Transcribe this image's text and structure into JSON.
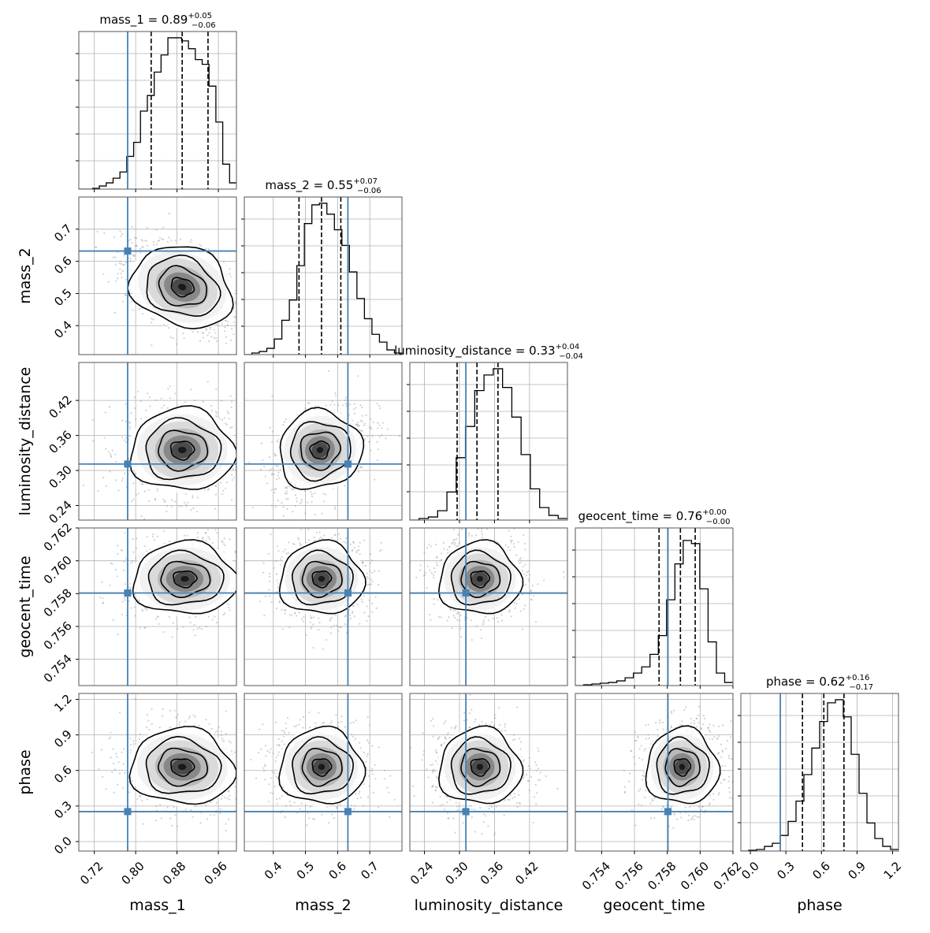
{
  "chart_data": {
    "type": "corner",
    "grid": true,
    "truth_color": "#4682b4",
    "parameters": [
      {
        "name": "mass_1",
        "range": [
          0.69,
          0.995
        ],
        "ticks": [
          0.72,
          0.8,
          0.88,
          0.96
        ],
        "tick_labels": [
          "0.72",
          "0.80",
          "0.88",
          "0.96"
        ],
        "truth": 0.7845,
        "median": 0.89,
        "q_lo": 0.83,
        "q_hi": 0.94,
        "title_main": "mass_1 = 0.89",
        "title_sup": "+0.05",
        "title_sub": "−0.06",
        "hist": [
          0.0,
          0.0,
          0.005,
          0.02,
          0.04,
          0.07,
          0.11,
          0.21,
          0.3,
          0.5,
          0.6,
          0.75,
          0.86,
          0.97,
          0.97,
          0.95,
          0.9,
          0.83,
          0.8,
          0.66,
          0.43,
          0.16,
          0.04
        ]
      },
      {
        "name": "mass_2",
        "range": [
          0.31,
          0.8
        ],
        "ticks": [
          0.4,
          0.5,
          0.6,
          0.7
        ],
        "tick_labels": [
          "0.4",
          "0.5",
          "0.6",
          "0.7"
        ],
        "truth": 0.632,
        "median": 0.55,
        "q_lo": 0.48,
        "q_hi": 0.61,
        "title_main": "mass_2 = 0.55",
        "title_sup": "+0.07",
        "title_sub": "−0.06",
        "hist": [
          0.0,
          0.01,
          0.02,
          0.04,
          0.1,
          0.22,
          0.35,
          0.57,
          0.84,
          0.96,
          0.97,
          0.9,
          0.8,
          0.7,
          0.53,
          0.36,
          0.23,
          0.13,
          0.08,
          0.03,
          0.01
        ]
      },
      {
        "name": "luminosity_distance",
        "range": [
          0.215,
          0.485
        ],
        "ticks": [
          0.24,
          0.3,
          0.36,
          0.42
        ],
        "tick_labels": [
          "0.24",
          "0.30",
          "0.36",
          "0.42"
        ],
        "truth": 0.311,
        "median": 0.33,
        "q_lo": 0.296,
        "q_hi": 0.366,
        "title_main": "luminosity_distance = 0.33",
        "title_sup": "+0.04",
        "title_sub": "−0.04",
        "hist": [
          0.0,
          0.01,
          0.02,
          0.06,
          0.18,
          0.4,
          0.6,
          0.83,
          0.93,
          0.97,
          0.85,
          0.66,
          0.42,
          0.2,
          0.08,
          0.03,
          0.01
        ]
      },
      {
        "name": "geocent_time",
        "range": [
          0.7524,
          0.762
        ],
        "ticks": [
          0.754,
          0.756,
          0.758,
          0.76,
          0.762
        ],
        "tick_labels": [
          "0.754",
          "0.756",
          "0.758",
          "0.760",
          "0.762"
        ],
        "truth": 0.75804,
        "median": 0.7588,
        "q_lo": 0.7575,
        "q_hi": 0.7597,
        "title_main": "geocent_time = 0.76",
        "title_sup": "+0.00",
        "title_sub": "−0.00",
        "hist": [
          0.0,
          0.005,
          0.01,
          0.015,
          0.02,
          0.03,
          0.05,
          0.08,
          0.12,
          0.2,
          0.32,
          0.55,
          0.78,
          0.93,
          0.91,
          0.62,
          0.28,
          0.08,
          0.02
        ]
      },
      {
        "name": "phase",
        "range": [
          -0.08,
          1.25
        ],
        "ticks": [
          0.0,
          0.3,
          0.6,
          0.9,
          1.2
        ],
        "tick_labels": [
          "0.0",
          "0.3",
          "0.6",
          "0.9",
          "1.2"
        ],
        "truth": 0.253,
        "median": 0.62,
        "q_lo": 0.44,
        "q_hi": 0.79,
        "title_main": "phase = 0.62",
        "title_sup": "+0.16",
        "title_sub": "−0.17",
        "hist": [
          0.0,
          0.005,
          0.01,
          0.03,
          0.05,
          0.1,
          0.19,
          0.32,
          0.49,
          0.66,
          0.83,
          0.95,
          0.97,
          0.86,
          0.62,
          0.37,
          0.18,
          0.08,
          0.03,
          0.01
        ]
      }
    ],
    "pairs": [
      {
        "row": 1,
        "col": 0,
        "cx": 0.89,
        "cy": 0.52,
        "sx": 0.05,
        "sy": 0.065,
        "rho": -0.5
      },
      {
        "row": 2,
        "col": 0,
        "cx": 0.89,
        "cy": 0.335,
        "sx": 0.05,
        "sy": 0.035,
        "rho": 0.0
      },
      {
        "row": 2,
        "col": 1,
        "cx": 0.545,
        "cy": 0.335,
        "sx": 0.065,
        "sy": 0.035,
        "rho": 0.45
      },
      {
        "row": 3,
        "col": 0,
        "cx": 0.895,
        "cy": 0.7589,
        "sx": 0.05,
        "sy": 0.0011,
        "rho": 0.0
      },
      {
        "row": 3,
        "col": 1,
        "cx": 0.55,
        "cy": 0.7589,
        "sx": 0.065,
        "sy": 0.0011,
        "rho": 0.0
      },
      {
        "row": 3,
        "col": 2,
        "cx": 0.335,
        "cy": 0.7589,
        "sx": 0.035,
        "sy": 0.0011,
        "rho": 0.0
      },
      {
        "row": 4,
        "col": 0,
        "cx": 0.89,
        "cy": 0.63,
        "sx": 0.05,
        "sy": 0.16,
        "rho": -0.1
      },
      {
        "row": 4,
        "col": 1,
        "cx": 0.55,
        "cy": 0.63,
        "sx": 0.065,
        "sy": 0.16,
        "rho": -0.05
      },
      {
        "row": 4,
        "col": 2,
        "cx": 0.335,
        "cy": 0.63,
        "sx": 0.035,
        "sy": 0.16,
        "rho": 0.0
      },
      {
        "row": 4,
        "col": 3,
        "cx": 0.7589,
        "cy": 0.63,
        "sx": 0.0011,
        "sy": 0.16,
        "rho": 0.0
      }
    ]
  }
}
